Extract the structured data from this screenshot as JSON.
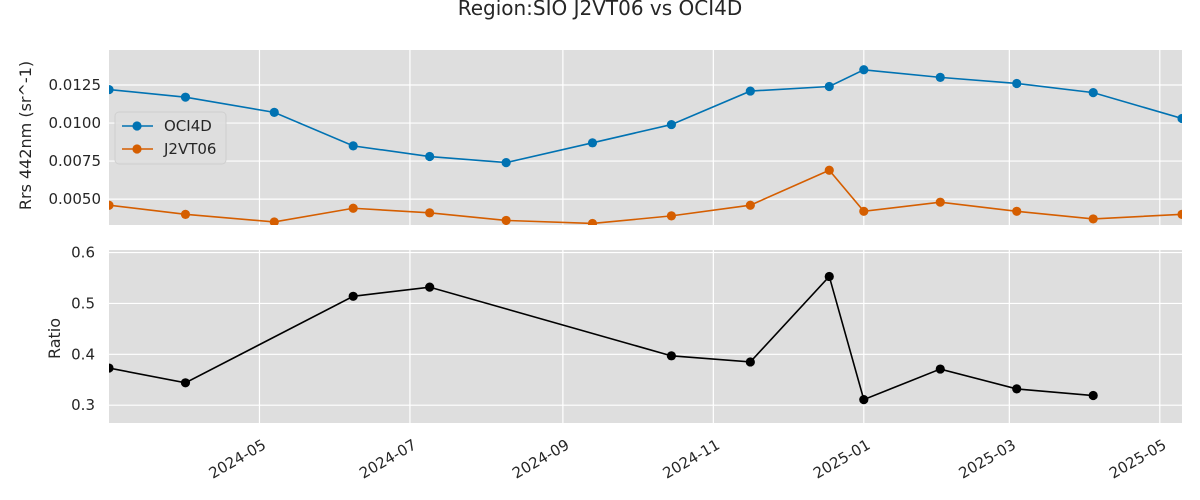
{
  "colors": {
    "plot_background": "#dedede",
    "grid": "#ffffff",
    "oci4d": "#0072b2",
    "j2vt06": "#d55e00",
    "ratio": "#000000",
    "text": "#262626"
  },
  "chart_data": [
    {
      "type": "line",
      "title": "Region:SIO J2VT06 vs OCI4D",
      "xlabel": "",
      "ylabel": "Rrs 442nm (sr^-1)",
      "xlim": [
        "2024-03-01",
        "2025-05-10"
      ],
      "ylim": [
        0.0033,
        0.0148
      ],
      "yticks": [
        0.005,
        0.0075,
        0.01,
        0.0125
      ],
      "ytick_labels": [
        "0.0050",
        "0.0075",
        "0.0100",
        "0.0125"
      ],
      "grid": true,
      "legend": "center-left",
      "series": [
        {
          "name": "OCI4D",
          "color": "#0072b2",
          "x": [
            "2024-03-01",
            "2024-04-01",
            "2024-05-07",
            "2024-06-08",
            "2024-07-09",
            "2024-08-09",
            "2024-09-13",
            "2024-10-15",
            "2024-11-16",
            "2024-12-18",
            "2025-01-01",
            "2025-02-01",
            "2025-03-04",
            "2025-04-04",
            "2025-05-10"
          ],
          "y": [
            0.0122,
            0.0117,
            0.0107,
            0.0085,
            0.0078,
            0.0074,
            0.0087,
            0.0099,
            0.0121,
            0.0124,
            0.0135,
            0.013,
            0.0126,
            0.012,
            0.0103
          ]
        },
        {
          "name": "J2VT06",
          "color": "#d55e00",
          "x": [
            "2024-03-01",
            "2024-04-01",
            "2024-05-07",
            "2024-06-08",
            "2024-07-09",
            "2024-08-09",
            "2024-09-13",
            "2024-10-15",
            "2024-11-16",
            "2024-12-18",
            "2025-01-01",
            "2025-02-01",
            "2025-03-04",
            "2025-04-04",
            "2025-05-10"
          ],
          "y": [
            0.0046,
            0.004,
            0.0035,
            0.0044,
            0.0041,
            0.0036,
            0.0034,
            0.0039,
            0.0046,
            0.0069,
            0.0042,
            0.0048,
            0.0042,
            0.0037,
            0.004
          ]
        }
      ]
    },
    {
      "type": "line",
      "title": "",
      "xlabel": "",
      "ylabel": "Ratio",
      "xlim": [
        "2024-03-01",
        "2025-05-10"
      ],
      "ylim": [
        0.265,
        0.605
      ],
      "yticks": [
        0.3,
        0.4,
        0.5,
        0.6
      ],
      "ytick_labels": [
        "0.3",
        "0.4",
        "0.5",
        "0.6"
      ],
      "xticks": [
        "2024-05-01",
        "2024-07-01",
        "2024-09-01",
        "2024-11-01",
        "2025-01-01",
        "2025-03-01",
        "2025-05-01"
      ],
      "xtick_labels": [
        "2024-05",
        "2024-07",
        "2024-09",
        "2024-11",
        "2025-01",
        "2025-03",
        "2025-05"
      ],
      "grid": true,
      "series": [
        {
          "color": "#000000",
          "x": [
            "2024-03-01",
            "2024-04-01",
            "2024-06-08",
            "2024-07-09",
            "2024-10-15",
            "2024-11-16",
            "2024-12-18",
            "2025-01-01",
            "2025-02-01",
            "2025-03-04",
            "2025-04-04"
          ],
          "y": [
            0.373,
            0.344,
            0.514,
            0.532,
            0.397,
            0.385,
            0.553,
            0.311,
            0.371,
            0.332,
            0.319
          ]
        }
      ]
    }
  ]
}
